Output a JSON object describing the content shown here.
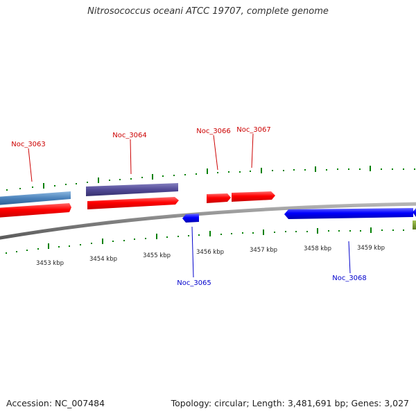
{
  "title": "Nitrosococcus oceani ATCC 19707, complete genome",
  "footer": {
    "accession": "Accession: NC_007484",
    "info": "Topology: circular; Length: 3,481,691 bp; Genes: 3,027"
  },
  "colors": {
    "forward_gene": "#ff0000",
    "reverse_gene": "#0000ff",
    "forward_label": "#cc0000",
    "reverse_label": "#0000cc",
    "tick": "#008000",
    "backbone": "#888888",
    "cds_light_blue": "#5b8fc4",
    "cds_purple": "#554e9a",
    "olive": "#6b8e23"
  },
  "axis": {
    "kbp_labels": [
      "3453 kbp",
      "3454 kbp",
      "3455 kbp",
      "3456 kbp",
      "3457 kbp",
      "3458 kbp",
      "3459 kbp"
    ]
  },
  "genes": [
    {
      "label": "Noc_3063",
      "strand": "forward"
    },
    {
      "label": "Noc_3064",
      "strand": "forward"
    },
    {
      "label": "Noc_3065",
      "strand": "reverse"
    },
    {
      "label": "Noc_3066",
      "strand": "forward"
    },
    {
      "label": "Noc_3067",
      "strand": "forward"
    },
    {
      "label": "Noc_3068",
      "strand": "reverse"
    }
  ]
}
